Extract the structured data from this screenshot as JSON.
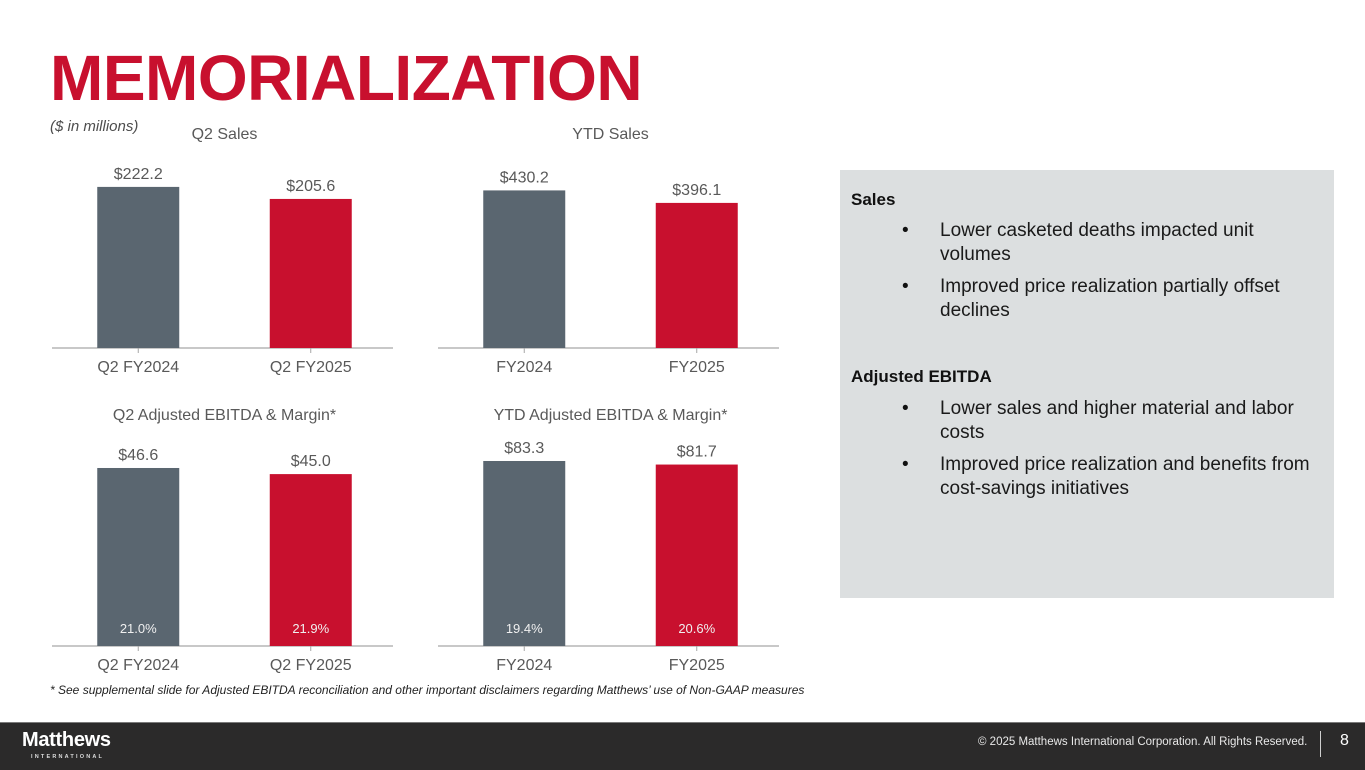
{
  "header": {
    "title": "MEMORIALIZATION",
    "units_note": "($ in millions)"
  },
  "colors": {
    "prior_year": "#5a6670",
    "current_year": "#c8102e",
    "title": "#c8102e",
    "panel_bg": "#dcdfe0"
  },
  "chart_data": [
    {
      "type": "bar",
      "title": "Q2 Sales",
      "categories": [
        "Q2 FY2024",
        "Q2 FY2025"
      ],
      "values": [
        222.2,
        205.6
      ],
      "data_labels": [
        "$222.2",
        "$205.6"
      ],
      "xlabel": "",
      "ylabel": "",
      "ylim": [
        0,
        240
      ],
      "grid": false
    },
    {
      "type": "bar",
      "title": "YTD Sales",
      "categories": [
        "FY2024",
        "FY2025"
      ],
      "values": [
        430.2,
        396.1
      ],
      "data_labels": [
        "$430.2",
        "$396.1"
      ],
      "xlabel": "",
      "ylabel": "",
      "ylim": [
        0,
        475
      ],
      "grid": false
    },
    {
      "type": "bar",
      "title": "Q2 Adjusted EBITDA & Margin*",
      "categories": [
        "Q2 FY2024",
        "Q2 FY2025"
      ],
      "values": [
        46.6,
        45.0
      ],
      "data_labels": [
        "$46.6",
        "$45.0"
      ],
      "margins": [
        "21.0%",
        "21.9%"
      ],
      "xlabel": "",
      "ylabel": "",
      "ylim": [
        0,
        50
      ],
      "grid": false
    },
    {
      "type": "bar",
      "title": "YTD Adjusted EBITDA & Margin*",
      "categories": [
        "FY2024",
        "FY2025"
      ],
      "values": [
        83.3,
        81.7
      ],
      "data_labels": [
        "$83.3",
        "$81.7"
      ],
      "margins": [
        "19.4%",
        "20.6%"
      ],
      "xlabel": "",
      "ylabel": "",
      "ylim": [
        0,
        86
      ],
      "grid": false
    }
  ],
  "commentary": {
    "sections": [
      {
        "heading": "Sales",
        "bullets": [
          "Lower casketed deaths impacted unit volumes",
          "Improved price realization partially offset declines"
        ]
      },
      {
        "heading": "Adjusted EBITDA",
        "bullets": [
          "Lower sales and higher material and labor costs",
          "Improved price realization and benefits from cost-savings initiatives"
        ]
      }
    ],
    "bullet_glyph": "•"
  },
  "footnote": "* See supplemental slide for Adjusted EBITDA reconciliation and other important disclaimers regarding Matthews’ use of Non-GAAP measures",
  "footer": {
    "logo_main": "Matthews",
    "logo_sub": "INTERNATIONAL",
    "copyright": "© 2025 Matthews International Corporation. All Rights Reserved.",
    "page_number": "8"
  }
}
